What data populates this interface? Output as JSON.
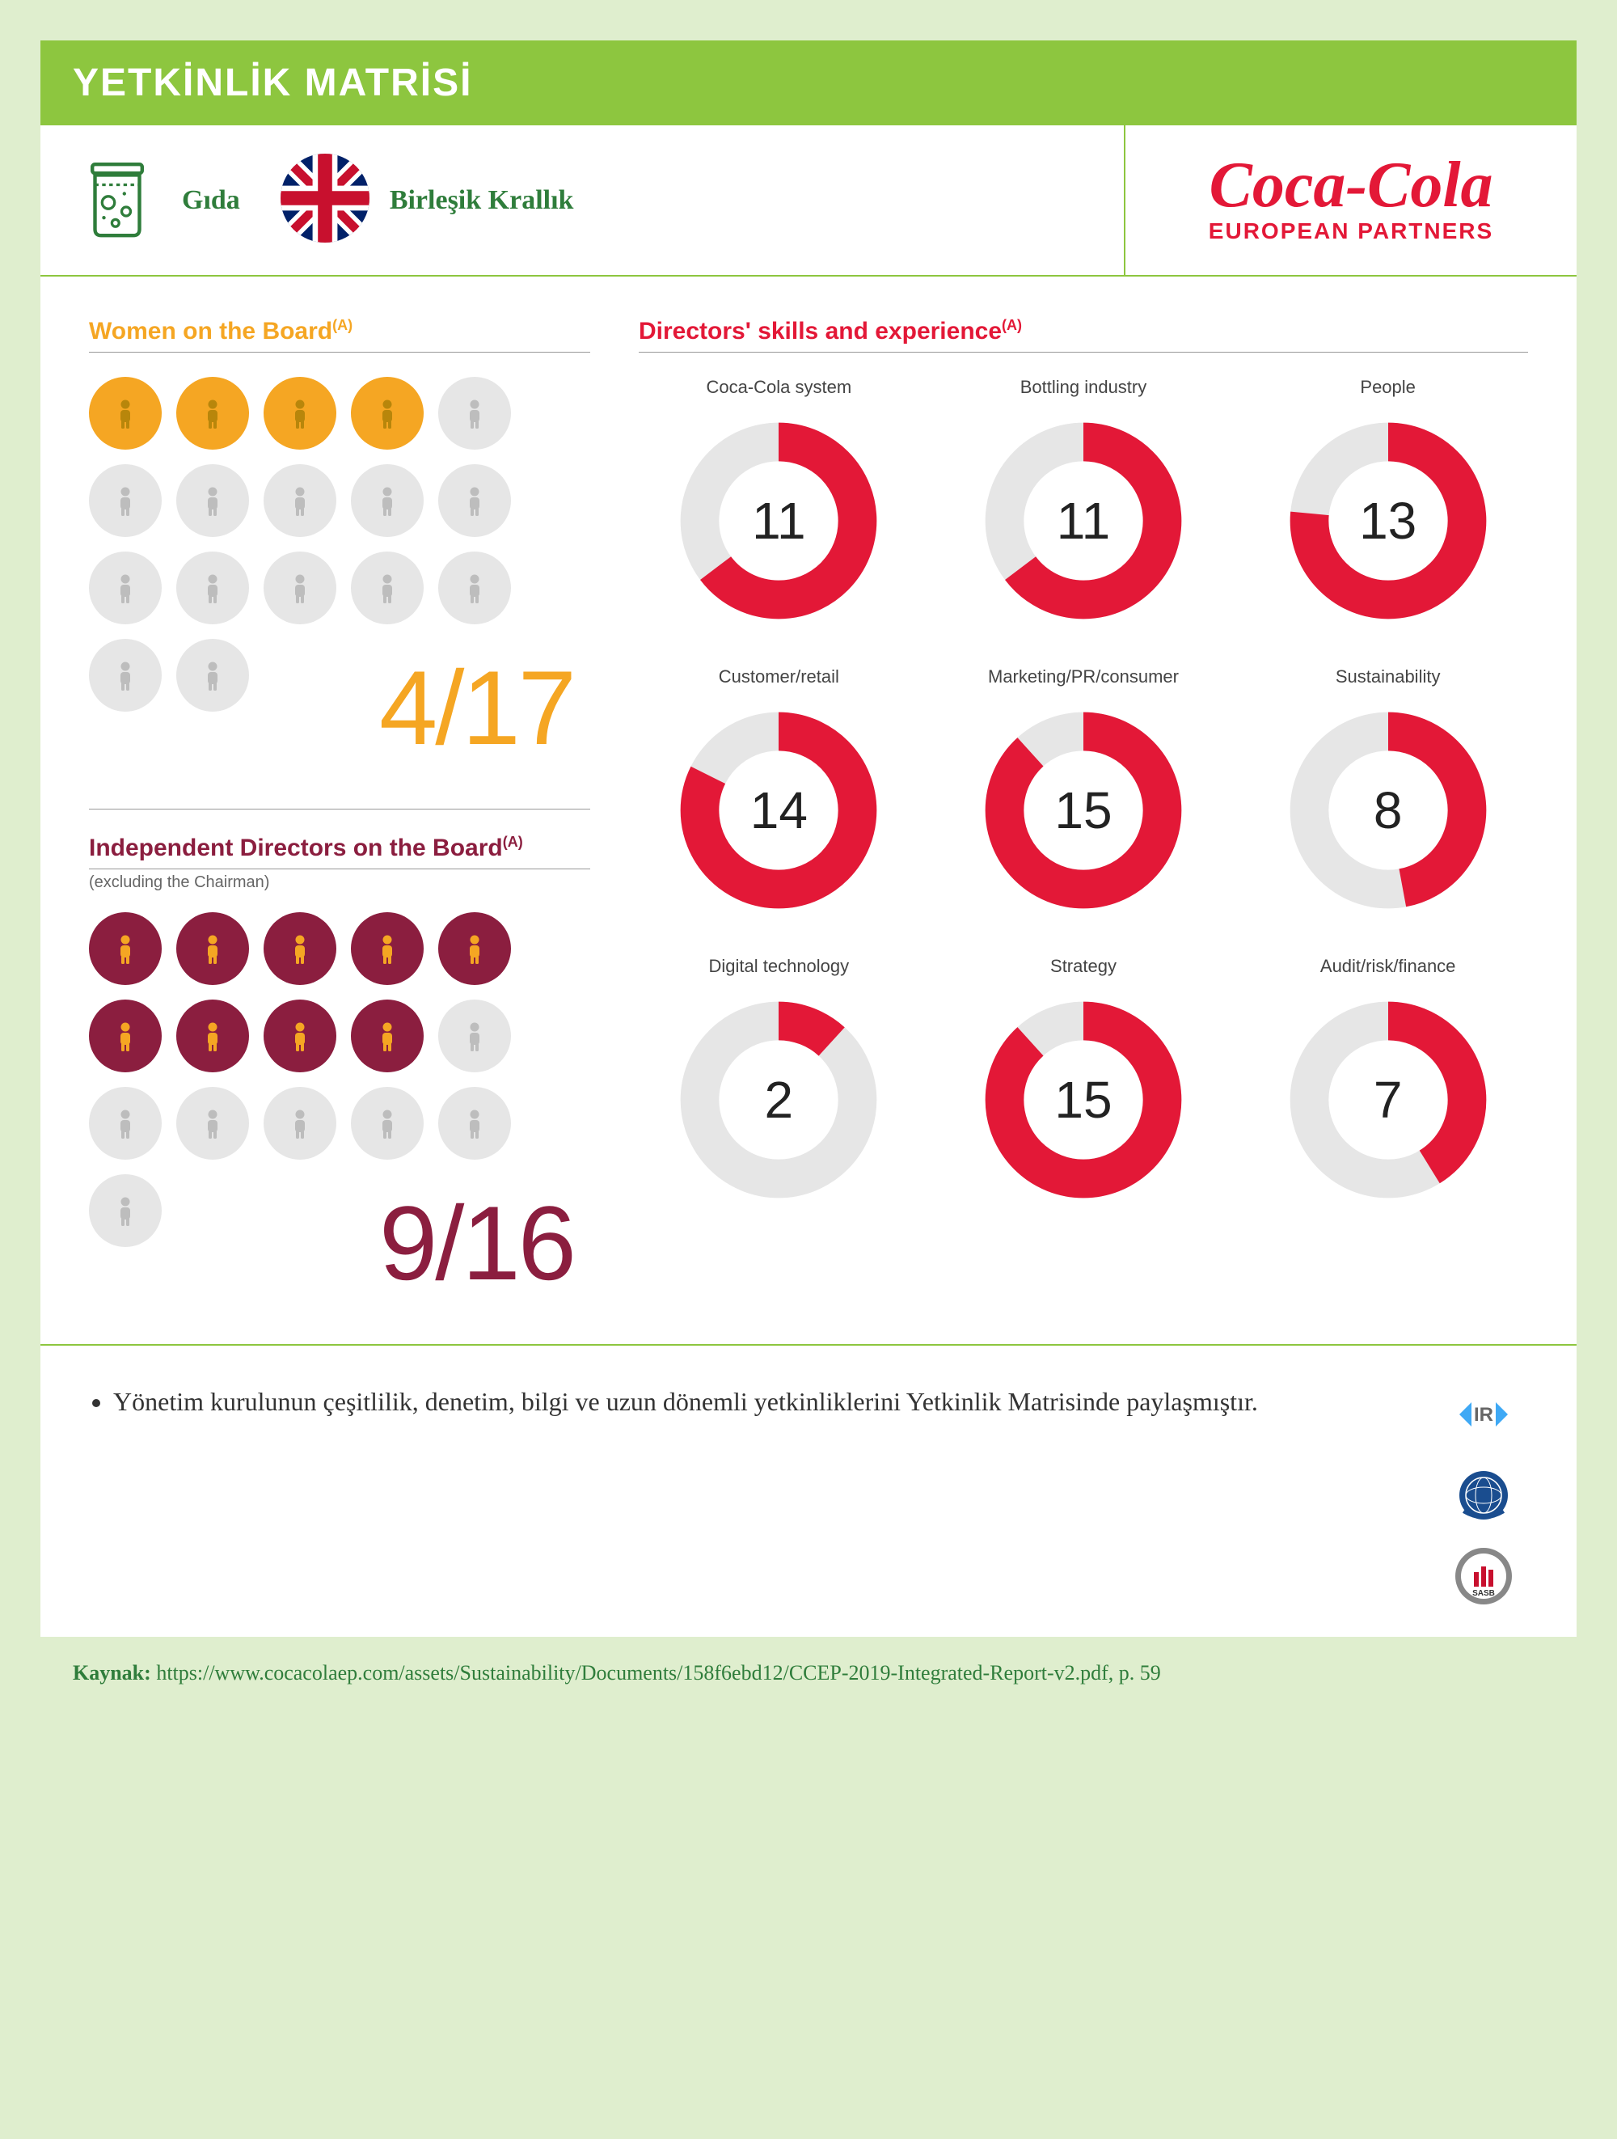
{
  "title": "YETKİNLİK MATRİSİ",
  "badges": {
    "food": "Gıda",
    "country": "Birleşik Krallık"
  },
  "logo": {
    "main": "Coca-Cola",
    "sub": "EUROPEAN PARTNERS"
  },
  "women": {
    "title": "Women on the Board",
    "sup": "(A)",
    "filled": 4,
    "total": 17,
    "frac": "4/17",
    "fill_color": "#f5a623",
    "empty_color": "#e6e6e6",
    "title_color": "#f5a623",
    "icon_color": "#b8860b"
  },
  "independent": {
    "title": "Independent Directors on the Board",
    "sup": "(A)",
    "subtitle": "(excluding the Chairman)",
    "filled": 9,
    "total": 16,
    "frac": "9/16",
    "fill_color": "#8b1e3f",
    "empty_color": "#e6e6e6",
    "title_color": "#8b1e3f",
    "icon_color": "#f5a623"
  },
  "skills": {
    "title": "Directors' skills and experience",
    "sup": "(A)",
    "title_color": "#e31837",
    "max": 17,
    "ring_color": "#e31837",
    "ring_bg": "#e6e6e6",
    "items": [
      {
        "label": "Coca-Cola system",
        "value": 11
      },
      {
        "label": "Bottling industry",
        "value": 11
      },
      {
        "label": "People",
        "value": 13
      },
      {
        "label": "Customer/retail",
        "value": 14
      },
      {
        "label": "Marketing/PR/consumer",
        "value": 15
      },
      {
        "label": "Sustainability",
        "value": 8
      },
      {
        "label": "Digital technology",
        "value": 2
      },
      {
        "label": "Strategy",
        "value": 15
      },
      {
        "label": "Audit/risk/finance",
        "value": 7
      }
    ]
  },
  "footer_bullet": "Yönetim kurulunun çeşitlilik, denetim, bilgi ve uzun dönemli yetkinliklerini Yetkinlik Matrisinde paylaşmıştır.",
  "source_label": "Kaynak:",
  "source_url": "https://www.cocacolaep.com/assets/Sustainability/Documents/158f6ebd12/CCEP-2019-Integrated-Report-v2.pdf, p. 59",
  "colors": {
    "green": "#8dc63f",
    "dark_green": "#2f7d3b",
    "red": "#e31837"
  }
}
